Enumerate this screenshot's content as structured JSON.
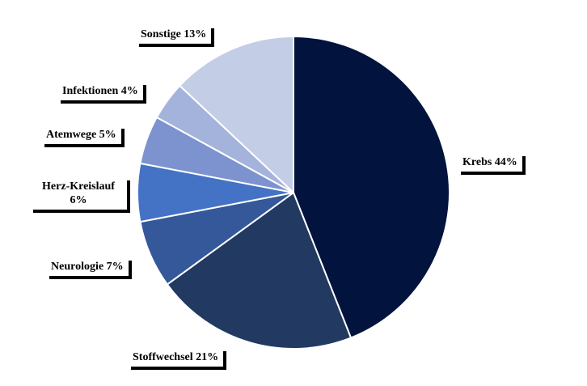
{
  "chart_data": {
    "type": "pie",
    "start_angle_deg": 0,
    "direction": "clockwise",
    "slices": [
      {
        "name": "Krebs",
        "value": 44,
        "label": "Krebs 44%",
        "color": "#02133d"
      },
      {
        "name": "Stoffwechsel",
        "value": 21,
        "label": "Stoffwechsel 21%",
        "color": "#223a62"
      },
      {
        "name": "Neurologie",
        "value": 7,
        "label": "Neurologie  7%",
        "color": "#34589a"
      },
      {
        "name": "Herz-Kreislauf",
        "value": 6,
        "label": "Herz-Kreislauf 6%",
        "color": "#4472c4"
      },
      {
        "name": "Atemwege",
        "value": 5,
        "label": "Atemwege  5%",
        "color": "#7d93cf"
      },
      {
        "name": "Infektionen",
        "value": 4,
        "label": "Infektionen  4%",
        "color": "#a4b3db"
      },
      {
        "name": "Sonstige",
        "value": 13,
        "label": "Sonstige 13%",
        "color": "#c3cde6"
      }
    ]
  }
}
